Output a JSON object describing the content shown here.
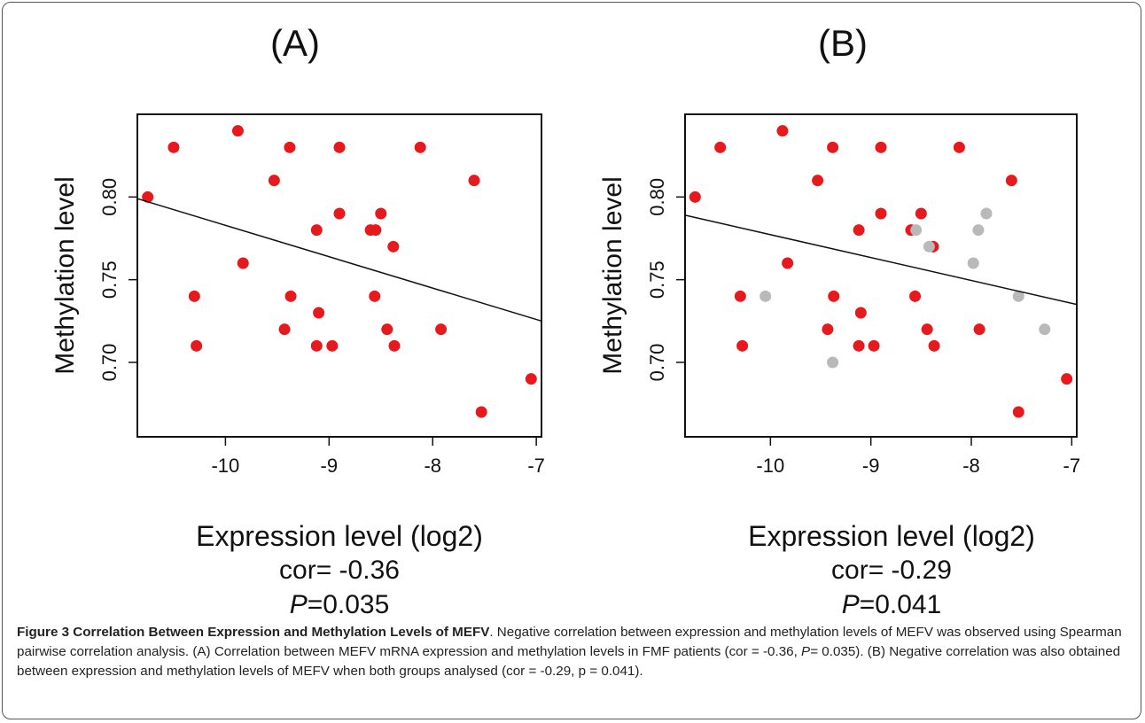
{
  "chart_data": [
    {
      "panel_title": "(A)",
      "type": "scatter",
      "xlabel": "Expression level (log2)",
      "ylabel": "Methylation level",
      "xlim": [
        -10.85,
        -6.95
      ],
      "ylim": [
        0.655,
        0.85
      ],
      "x_ticks": [
        -10,
        -9,
        -8,
        -7
      ],
      "y_ticks": [
        0.7,
        0.75,
        0.8
      ],
      "x_tick_labels": [
        "-10",
        "-9",
        "-8",
        "-7"
      ],
      "y_tick_labels": [
        "0.70",
        "0.75",
        "0.80"
      ],
      "cor_text": "cor= -0.36",
      "p_label": "P",
      "p_value": "=0.035",
      "trendline": {
        "x": [
          -10.85,
          -6.95
        ],
        "y": [
          0.799,
          0.725
        ]
      },
      "series": [
        {
          "color": "#e8191c",
          "points": [
            [
              -10.75,
              0.8
            ],
            [
              -10.5,
              0.83
            ],
            [
              -10.3,
              0.74
            ],
            [
              -10.28,
              0.71
            ],
            [
              -9.88,
              0.84
            ],
            [
              -9.83,
              0.76
            ],
            [
              -9.53,
              0.81
            ],
            [
              -9.43,
              0.72
            ],
            [
              -9.38,
              0.83
            ],
            [
              -9.37,
              0.74
            ],
            [
              -9.12,
              0.78
            ],
            [
              -9.1,
              0.73
            ],
            [
              -9.12,
              0.71
            ],
            [
              -8.97,
              0.71
            ],
            [
              -8.9,
              0.83
            ],
            [
              -8.9,
              0.79
            ],
            [
              -8.6,
              0.78
            ],
            [
              -8.55,
              0.78
            ],
            [
              -8.56,
              0.74
            ],
            [
              -8.5,
              0.79
            ],
            [
              -8.44,
              0.72
            ],
            [
              -8.38,
              0.77
            ],
            [
              -8.37,
              0.71
            ],
            [
              -8.12,
              0.83
            ],
            [
              -7.92,
              0.72
            ],
            [
              -7.6,
              0.81
            ],
            [
              -7.53,
              0.67
            ],
            [
              -7.05,
              0.69
            ]
          ]
        }
      ]
    },
    {
      "panel_title": "(B)",
      "type": "scatter",
      "xlabel": "Expression level (log2)",
      "ylabel": "Methylation level",
      "xlim": [
        -10.85,
        -6.95
      ],
      "ylim": [
        0.655,
        0.85
      ],
      "x_ticks": [
        -10,
        -9,
        -8,
        -7
      ],
      "y_ticks": [
        0.7,
        0.75,
        0.8
      ],
      "x_tick_labels": [
        "-10",
        "-9",
        "-8",
        "-7"
      ],
      "y_tick_labels": [
        "0.70",
        "0.75",
        "0.80"
      ],
      "cor_text": "cor= -0.29",
      "p_label": "P",
      "p_value": "=0.041",
      "trendline": {
        "x": [
          -10.85,
          -6.95
        ],
        "y": [
          0.789,
          0.735
        ]
      },
      "series": [
        {
          "color": "#e8191c",
          "points": [
            [
              -10.75,
              0.8
            ],
            [
              -10.5,
              0.83
            ],
            [
              -10.3,
              0.74
            ],
            [
              -10.28,
              0.71
            ],
            [
              -9.88,
              0.84
            ],
            [
              -9.83,
              0.76
            ],
            [
              -9.53,
              0.81
            ],
            [
              -9.43,
              0.72
            ],
            [
              -9.38,
              0.83
            ],
            [
              -9.37,
              0.74
            ],
            [
              -9.12,
              0.78
            ],
            [
              -9.1,
              0.73
            ],
            [
              -9.12,
              0.71
            ],
            [
              -8.97,
              0.71
            ],
            [
              -8.9,
              0.83
            ],
            [
              -8.9,
              0.79
            ],
            [
              -8.6,
              0.78
            ],
            [
              -8.56,
              0.74
            ],
            [
              -8.5,
              0.79
            ],
            [
              -8.44,
              0.72
            ],
            [
              -8.38,
              0.77
            ],
            [
              -8.37,
              0.71
            ],
            [
              -8.12,
              0.83
            ],
            [
              -7.92,
              0.72
            ],
            [
              -7.6,
              0.81
            ],
            [
              -7.53,
              0.67
            ],
            [
              -7.05,
              0.69
            ]
          ]
        },
        {
          "color": "#b9b9b9",
          "points": [
            [
              -10.05,
              0.74
            ],
            [
              -9.38,
              0.7
            ],
            [
              -8.55,
              0.78
            ],
            [
              -8.42,
              0.77
            ],
            [
              -7.98,
              0.76
            ],
            [
              -7.93,
              0.78
            ],
            [
              -7.85,
              0.79
            ],
            [
              -7.53,
              0.74
            ],
            [
              -7.27,
              0.72
            ]
          ]
        }
      ]
    }
  ],
  "caption": {
    "head": "Figure 3 Correlation Between Expression and Methylation Levels of MEFV",
    "body_1": ". Negative correlation between expression and methylation levels of MEFV was observed using Spearman pairwise correlation analysis. (A) Correlation between MEFV mRNA expression and methylation levels in FMF patients (cor = -0.36, ",
    "p_italic": "P",
    "body_2": "= 0.035). (B) Negative correlation was also obtained between expression and methylation levels of MEFV when both groups analysed (cor = -0.29, p = 0.041)."
  }
}
